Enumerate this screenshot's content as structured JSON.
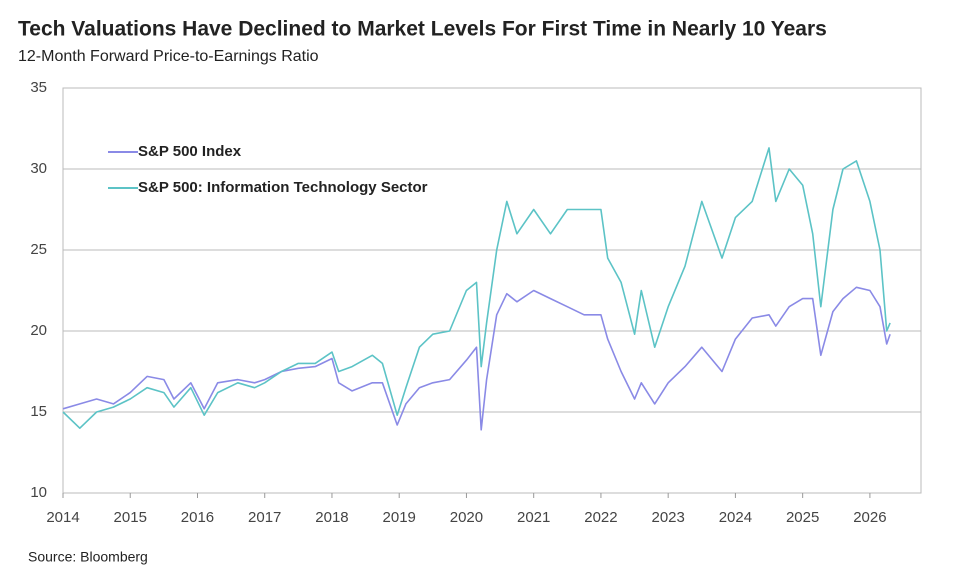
{
  "chart_data": {
    "type": "line",
    "title": "Tech Valuations Have Declined to Market Levels For First Time in Nearly 10 Years",
    "subtitle": "12-Month Forward Price-to-Earnings Ratio",
    "source": "Source: Bloomberg",
    "x": [
      2014.0,
      2014.25,
      2014.5,
      2014.75,
      2015.0,
      2015.25,
      2015.5,
      2015.65,
      2015.9,
      2016.1,
      2016.3,
      2016.6,
      2016.85,
      2017.0,
      2017.25,
      2017.5,
      2017.75,
      2018.0,
      2018.1,
      2018.3,
      2018.6,
      2018.75,
      2018.97,
      2019.1,
      2019.3,
      2019.5,
      2019.75,
      2020.0,
      2020.15,
      2020.22,
      2020.3,
      2020.45,
      2020.6,
      2020.75,
      2021.0,
      2021.25,
      2021.5,
      2021.75,
      2022.0,
      2022.1,
      2022.3,
      2022.5,
      2022.6,
      2022.8,
      2023.0,
      2023.25,
      2023.5,
      2023.8,
      2024.0,
      2024.25,
      2024.5,
      2024.6,
      2024.8,
      2025.0,
      2025.15,
      2025.27,
      2025.45,
      2025.6,
      2025.8,
      2026.0,
      2026.15,
      2026.25,
      2026.3
    ],
    "series": [
      {
        "name": "S&P 500 Index",
        "color": "#8a8ae6",
        "values": [
          15.2,
          15.5,
          15.8,
          15.5,
          16.2,
          17.2,
          17.0,
          15.8,
          16.8,
          15.2,
          16.8,
          17.0,
          16.8,
          17.0,
          17.5,
          17.7,
          17.8,
          18.3,
          16.8,
          16.3,
          16.8,
          16.8,
          14.2,
          15.5,
          16.5,
          16.8,
          17.0,
          18.2,
          19.0,
          13.9,
          17.0,
          21.0,
          22.3,
          21.8,
          22.5,
          22.0,
          21.5,
          21.0,
          21.0,
          19.5,
          17.5,
          15.8,
          16.8,
          15.5,
          16.8,
          17.8,
          19.0,
          17.5,
          19.5,
          20.8,
          21.0,
          20.3,
          21.5,
          22.0,
          22.0,
          18.5,
          21.2,
          22.0,
          22.7,
          22.5,
          21.5,
          19.2,
          19.8
        ]
      },
      {
        "name": "S&P 500: Information Technology Sector",
        "color": "#5cc3c6",
        "values": [
          15.0,
          14.0,
          15.0,
          15.3,
          15.8,
          16.5,
          16.2,
          15.3,
          16.5,
          14.8,
          16.2,
          16.8,
          16.5,
          16.8,
          17.5,
          18.0,
          18.0,
          18.7,
          17.5,
          17.8,
          18.5,
          18.0,
          14.8,
          16.5,
          19.0,
          19.8,
          20.0,
          22.5,
          23.0,
          17.8,
          20.5,
          25.0,
          28.0,
          26.0,
          27.5,
          26.0,
          27.5,
          27.5,
          27.5,
          24.5,
          23.0,
          19.8,
          22.5,
          19.0,
          21.5,
          24.0,
          28.0,
          24.5,
          27.0,
          28.0,
          31.3,
          28.0,
          30.0,
          29.0,
          26.0,
          21.5,
          27.5,
          30.0,
          30.5,
          28.0,
          25.0,
          20.0,
          20.5
        ]
      }
    ],
    "xlim": [
      2014,
      2026.76
    ],
    "xticks": [
      2014,
      2015,
      2016,
      2017,
      2018,
      2019,
      2020,
      2021,
      2022,
      2023,
      2024,
      2025,
      2026
    ],
    "ylim": [
      10,
      35
    ],
    "yticks": [
      10,
      15,
      20,
      25,
      30,
      35
    ],
    "grid": true,
    "legend": "top-left"
  }
}
